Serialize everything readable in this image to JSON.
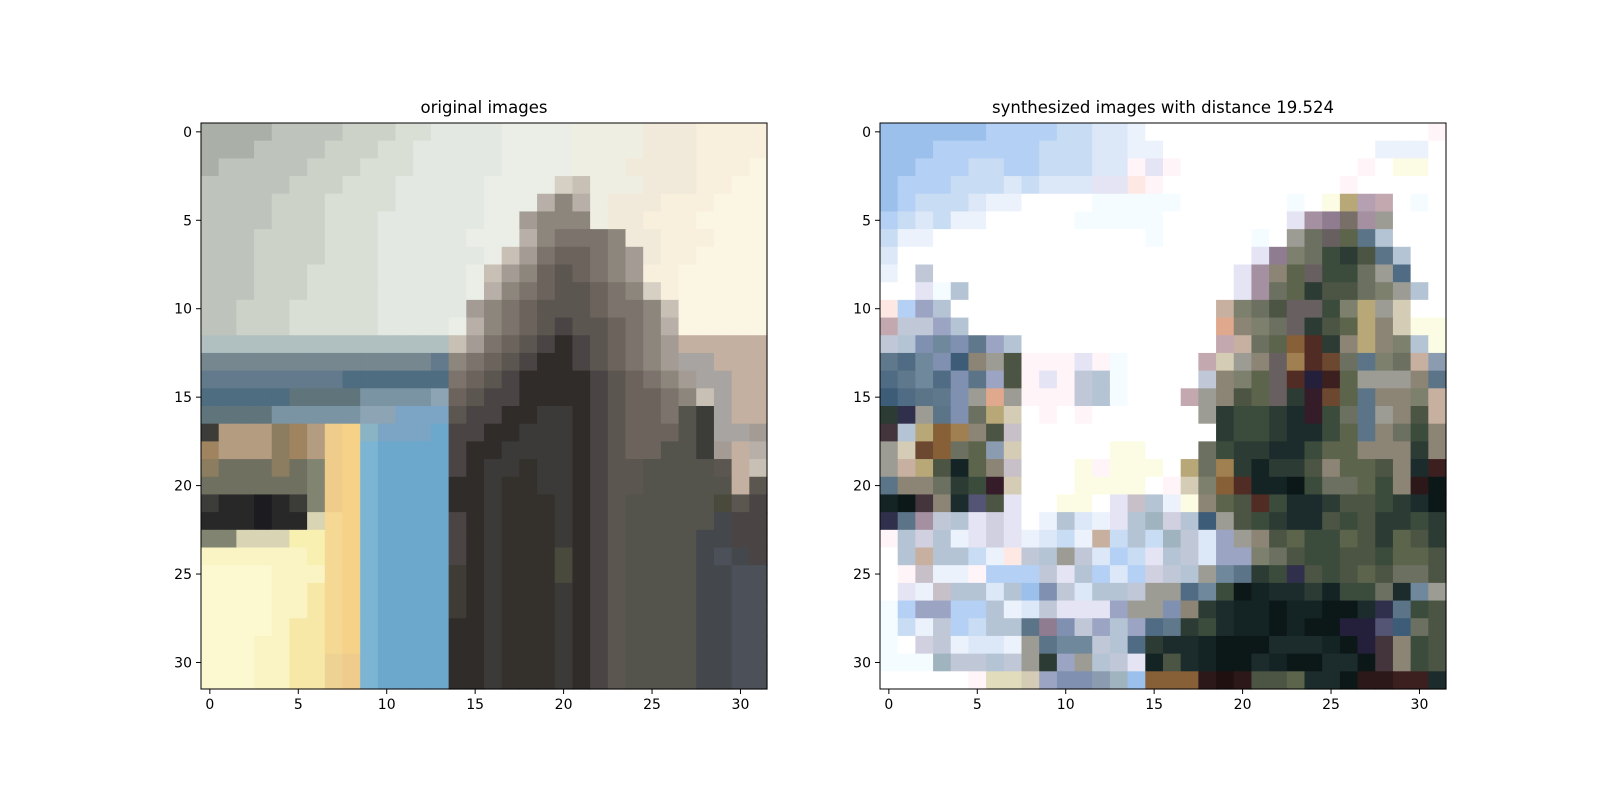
{
  "chart_data": [
    {
      "type": "heatmap",
      "title": "original images",
      "xlabel": "",
      "ylabel": "",
      "xlim": [
        -0.5,
        31.5
      ],
      "ylim": [
        31.5,
        -0.5
      ],
      "xticks": [
        0,
        5,
        10,
        15,
        20,
        25,
        30
      ],
      "yticks": [
        0,
        5,
        10,
        15,
        20,
        25,
        30
      ],
      "grid": false,
      "width": 32,
      "height": 32,
      "palette": {
        "a": "#aab0a8",
        "b": "#bec4bc",
        "c": "#ccd2c8",
        "d": "#dadfd6",
        "e": "#e3e8e2",
        "f": "#ebeee6",
        "g": "#efeee2",
        "h": "#f1e9da",
        "i": "#f8efdd",
        "j": "#fbf5e4",
        "k": "#b0c0c0",
        "l": "#a8a4a2",
        "m": "#c4b0a0",
        "n": "#778790",
        "o": "#627a8c",
        "p": "#4f6d80",
        "q": "#60747c",
        "r": "#7a94a4",
        "s": "#8ca4b4",
        "t": "#7ca4c4",
        "u": "#6ca8cc",
        "v": "#7cb4d4",
        "w": "#8ab4c4",
        "x": "#9ab0a8",
        "y": "#b4b8a0",
        "z": "#c8c8a0",
        "A": "#f8f0b0",
        "B": "#faf4c4",
        "C": "#fcf8d0",
        "D": "#f8e8a8",
        "E": "#f4d894",
        "F": "#eed294",
        "G": "#f0cc8c",
        "H": "#f6d288",
        "I": "#a08460",
        "J": "#b49c80",
        "K": "#8c7c60",
        "L": "#707060",
        "M": "#3c3c38",
        "N": "#282828",
        "O": "#1c1c20",
        "P": "#808470",
        "Q": "#d8d4b4",
        "R": "#4c4c48",
        "S": "#3c3a38",
        "T": "#302c2a",
        "U": "#4a4444",
        "V": "#5c5650",
        "W": "#6c645c",
        "X": "#7c746c",
        "Y": "#8c867c",
        "Z": "#a49c94",
        "0": "#b8b0a8",
        "1": "#c8c0b4",
        "2": "#d6d0c4",
        "3": "#44484c",
        "4": "#4c5058",
        "5": "#5a5e62",
        "6": "#3e3c34",
        "7": "#34302c",
        "8": "#4a4a3c",
        "9": "#54544c"
      },
      "pixels": [
        "aaaabbbbcccddeeeeffffgggghhhiiii",
        "aaabbbbcccddeeeeeffffgggghhhiiii",
        "abbbbbcccdddeeeeeffffggghhhhiiij",
        "bbbbbcccdddeeeeeffff21ggghhhiijj",
        "bbbbcccddddeeeeefff0Y0ghhhiiijjj",
        "bbbbcccdddeeeeeeffZYYYghhiiijjjj",
        "bbbccccdddeeeeefff0YXXXYhhiiijjj",
        "bbbccccdddeeeeeef1ZXWWXYZhiijjjj",
        "bbbcccddddeeeeef1ZYWVWXYZiijjjjj",
        "bbbcccddddeeeeef0YXWVVWXY2ijjjjj",
        "bbcccdddddeeeeeZYXWVVVWXXY1jjjjj",
        "bbcccdddddeeeef0YXWVUVVWXY0jjjjj",
        "kkkkkkkkkkkkkk1ZXWVUTUVWXYZmmmmm",
        "nnnnnnnnnnnnnoYXWVUTTUVWXYZllmmm",
        "ooooooooppppppXWVUTTTTUVWXYZllmm",
        "pppppqqqqrrrrsWVUUTTTTUVWWXY1lmm",
        "qqqqrrrrrsstttVUUTTSSTUVWWX9Mlmm",
        "MJJJKIJGHwtttuUUTTSSSTUVWWW9MllZ",
        "IJJJKIJGHvuuuuUTTSSSSTUVWW99MZm0",
        "KLLLKLPGHvuuuuUTSS7SSTUVV9999Vm1",
        "LLLLLLPGHvuuuuTTS77SSTUVV99999mV",
        "MNNONMPGHvuuuuTTS777STUV999998VU",
        "NNNONNQEHvuuuuUTS777STUV999993UU",
        "PPQQQAAEHvuuuuUTS777STUV999933UU",
        "BBBBBBAEHvuuuuUTS7778TUV9999343U",
        "CCCCBBBEHvuuuu6TS7778TUV99993344",
        "CCCCBBDEHvuuuu6TS777STUV99993344",
        "CCCCBBDEHvuuuu6TS777STUV99993344",
        "CCCCBDDEHvuuuuTTS777STUV99993344",
        "CCCBBDDEHvuuuuTTS777STUV99993344",
        "CCCBBDDFGvuuuuTTS777STUV99993344",
        "CCCBBDDFGvuuuuTTS777STUV99993344"
      ]
    },
    {
      "type": "heatmap",
      "title": "synthesized images with distance 19.524",
      "xlabel": "",
      "ylabel": "",
      "xlim": [
        -0.5,
        31.5
      ],
      "ylim": [
        31.5,
        -0.5
      ],
      "xticks": [
        0,
        5,
        10,
        15,
        20,
        25,
        30
      ],
      "yticks": [
        0,
        5,
        10,
        15,
        20,
        25,
        30
      ],
      "grid": false,
      "width": 32,
      "height": 32,
      "palette": {
        "a": "#9cc0ec",
        "b": "#b4d0f4",
        "c": "#c8dcf4",
        "d": "#dce8f8",
        "e": "#ecf2fc",
        "f": "#ffffff",
        "g": "#f4fcff",
        "h": "#fff4f8",
        "i": "#fcfce4",
        "j": "#fde8e4",
        "k": "#c0c8d8",
        "l": "#d0d0e0",
        "m": "#e4e4f4",
        "n": "#9ca4c4",
        "o": "#8090b0",
        "p": "#70889c",
        "q": "#60788c",
        "r": "#506c84",
        "s": "#3c5c78",
        "t": "#5c7488",
        "u": "#8c9cb0",
        "v": "#a0b4c0",
        "w": "#b4c4d4",
        "x": "#c8b0a0",
        "y": "#e0a88c",
        "z": "#c4a8b0",
        "A": "#9c9c94",
        "B": "#8c8474",
        "C": "#7c806c",
        "D": "#6c7060",
        "E": "#5c644c",
        "F": "#4c5444",
        "G": "#3c4c3c",
        "H": "#2c3c34",
        "I": "#1c2c2c",
        "J": "#142424",
        "K": "#0c1818",
        "L": "#24203c",
        "M": "#30304c",
        "N": "#404060",
        "O": "#545474",
        "P": "#686888",
        "Q": "#7c6c88",
        "R": "#907c90",
        "S": "#a490a0",
        "T": "#b4a0b0",
        "U": "#c8c0c8",
        "V": "#d4ccb4",
        "W": "#e0dcbc",
        "X": "#b8a878",
        "Y": "#a08050",
        "Z": "#886038",
        "0": "#6c4830",
        "1": "#502c24",
        "2": "#3c2020",
        "3": "#2c1818",
        "4": "#201010",
        "5": "#341c28",
        "6": "#44343c",
        "7": "#585058",
        "8": "#686060",
        "9": "#787068"
      },
      "pixels": [
        "aaaaaabbbbccddeffffffffffffffffh",
        "aaabbbbbbcccddeeffffffffffffeeef",
        "aabbbccbbcccddhmhffffffffffhfiif",
        "abbbcccdcdddmmjhffffffffffhfffff",
        "abcccdeeffffgggggffffffgfiXTzfgf",
        "bcdceefffffgggggfffffffmSR9SAfff",
        "ceeffffffffffffgfffffgfAD8Etwfff",
        "dffffffffffffffffffffmRCDGHFtwff",
        "efkfffffffffffffffffmSBE8GGDArff",
        "ffmgwfffffffffffffffmSDEHFFDCAwf",
        "jbnwfffffffffffffffxCDF88GCXAVff",
        "zkknwffffffffffffffyBCD8HFEXBVii",
        "kwopoqnwfffffffffffzxDEZ1HBXBCwi",
        "qrposBAFhhhmhgffffzVAB8Y10DtCDxu",
        "rqprotnFhmhkwgffffkBCE81L2EAAABt",
        "srtqoAyAhhhkwgfffzABFE8H50EtBBCx",
        "HMAtoDXVfhfhffffffAHGGHI5GDtABFx",
        "6wXZYBFUfffffffffffHGGHIIGEtBDGB",
        "AV0ZDEuVfffffiifffDGHHIIGEEBBBHB",
        "AxXFJEBUfffihiiifXDYHJHHFBEEFBI2",
        "tBBDHG5VfffiiiifhVCZ1JJKGDDEGB3K",
        "JK6BIOFmffiifmUweiBEF1GIIHFFGHIK",
        "MtSkwmlmfewdemwvlwsAFGHIIFGFHHGH",
        "hwlwemlmedcexcwcvkdnABFEGGEFHEFH",
        "fwxwwcejkwAkdbcmwkdnnCDFGGFFGEEF",
        "fhUeehbbbkmwbdblkwAptHGMFGFEFDDF",
        "fmeUwwdwaokdwwkAArpGKJIIHJGGDIpA",
        "gbnnbbwedkmmmnAAoBHIJJKJJKKIMtGF",
        "gcekbcwwtRoknwnrqHGIJJKJKKLLOsDF",
        "gflkeddeAtppkwrHIIJKKKIIIJKL6BGF",
        "gggvkkwkAHnAwkmJFIJKKIJKKIIK6BGF",
        "fffffhWWVnoouvaZZZ343FFEIIK3322I"
      ]
    }
  ]
}
